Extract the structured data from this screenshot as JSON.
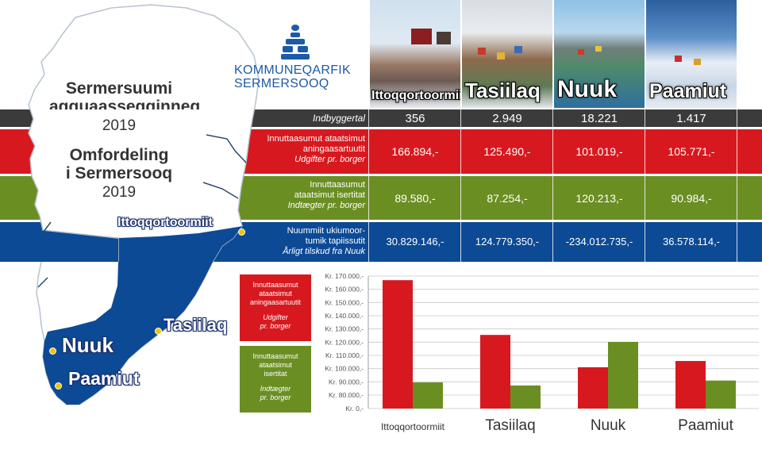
{
  "map": {
    "title_gl_line1": "Sermersuumi",
    "title_gl_line2": "agguaasseqqinneq",
    "year_gl": "2019",
    "title_da_line1": "Omfordeling",
    "title_da_line2": "i Sermersooq",
    "year_da": "2019",
    "towns": [
      "Ittoqqortoormiit",
      "Tasiilaq",
      "Nuuk",
      "Paamiut"
    ]
  },
  "logo": {
    "line1": "KOMMUNEQARFIK",
    "line2": "SERMERSOOQ"
  },
  "photos": [
    {
      "label": "Ittoqqortoormiit"
    },
    {
      "label": "Tasiilaq"
    },
    {
      "label": "Nuuk"
    },
    {
      "label": "Paamiut"
    }
  ],
  "table": {
    "population": {
      "label": "Indbyggertal",
      "values": [
        "356",
        "2.949",
        "18.221",
        "1.417"
      ]
    },
    "expenses": {
      "label_gl_1": "Innuttaasumut ataatsimut",
      "label_gl_2": "aningaasartuutit",
      "label_da": "Udgifter pr. borger",
      "values": [
        "166.894,-",
        "125.490,-",
        "101.019,-",
        "105.771,-"
      ]
    },
    "income": {
      "label_gl_1": "Innuttaasumut",
      "label_gl_2": "ataatsimut isertitat",
      "label_da": "Indtægter pr. borger",
      "values": [
        "89.580,-",
        "87.254,-",
        "120.213,-",
        "90.984,-"
      ]
    },
    "subsidy": {
      "label_gl_1": "Nuummiit ukiumoor-",
      "label_gl_2": "tumik tapiissutit",
      "label_da": "Årligt tilskud fra Nuuk",
      "values": [
        "30.829.146,-",
        "124.779.350,-",
        "-234.012.735,-",
        "36.578.114,-"
      ]
    }
  },
  "legend": {
    "expenses": {
      "gl_1": "Innuttaasumut",
      "gl_2": "ataatsimut",
      "gl_3": "aningaasartuutit",
      "da_1": "Udgifter",
      "da_2": "pr. borger"
    },
    "income": {
      "gl_1": "Innuttaasumut",
      "gl_2": "ataatsimut",
      "gl_3": "isertitat",
      "da_1": "Indtægter",
      "da_2": "pr. borger"
    }
  },
  "colors": {
    "red": "#d7191f",
    "green": "#6b8e23",
    "blue": "#0d4a95",
    "dark": "#3b3b3b"
  },
  "chart_data": {
    "type": "bar",
    "categories": [
      "Ittoqqortoormiit",
      "Tasiilaq",
      "Nuuk",
      "Paamiut"
    ],
    "series": [
      {
        "name": "Udgifter pr. borger",
        "color": "#d7191f",
        "values": [
          166894,
          125490,
          101019,
          105771
        ]
      },
      {
        "name": "Indtægter pr. borger",
        "color": "#6b8e23",
        "values": [
          89580,
          87254,
          120213,
          90984
        ]
      }
    ],
    "yticks": [
      {
        "value": 170000,
        "label": "Kr. 170.000,-"
      },
      {
        "value": 160000,
        "label": "Kr. 160.000,-"
      },
      {
        "value": 150000,
        "label": "Kr. 150.000,-"
      },
      {
        "value": 140000,
        "label": "Kr. 140.000,-"
      },
      {
        "value": 130000,
        "label": "Kr. 130.000,-"
      },
      {
        "value": 120000,
        "label": "Kr. 120.000,-"
      },
      {
        "value": 110000,
        "label": "Kr. 110.000,-"
      },
      {
        "value": 100000,
        "label": "Kr. 100.000,-"
      },
      {
        "value": 90000,
        "label": "Kr. 90.000,-"
      },
      {
        "value": 80000,
        "label": "Kr. 80.000,-"
      },
      {
        "value": 0,
        "label": "Kr. 0,-"
      }
    ],
    "ylim": [
      0,
      170000
    ],
    "axis_break": "between 0 and 80.000",
    "grid": true,
    "legend_position": "left",
    "title": "",
    "xlabel": "",
    "ylabel": ""
  }
}
